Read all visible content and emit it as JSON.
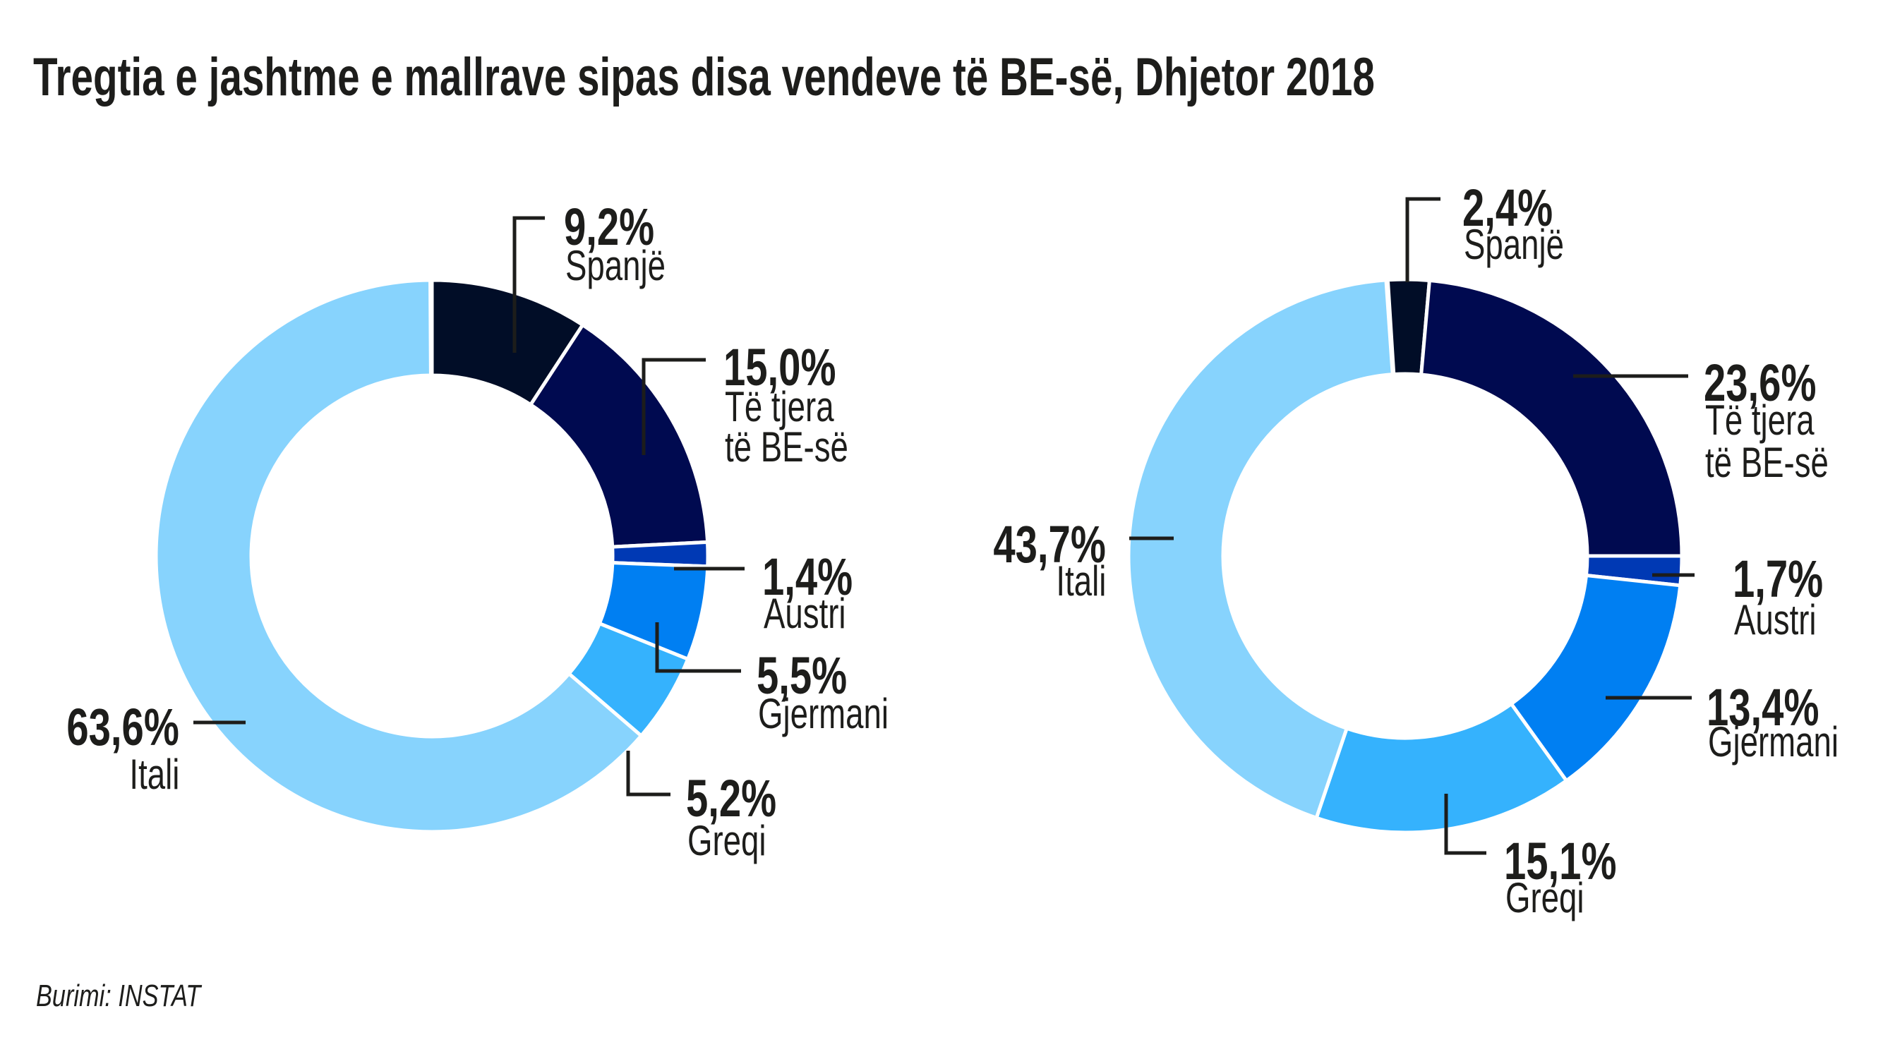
{
  "title": "Tregtia e jashtme e mallrave sipas disa vendeve të BE-së, Dhjetor 2018",
  "source": "Burimi: INSTAT",
  "colors": {
    "Spanjë": "#010d27",
    "Të tjera të BE-së": "#000a50",
    "Austri": "#0039b4",
    "Gjermani": "#007ff2",
    "Greqi": "#35b2fd",
    "Itali": "#87d3fd",
    "text": "#1d1d1b",
    "separator": "#ffffff"
  },
  "chart_data": [
    {
      "type": "pie",
      "variant": "donut",
      "title": "",
      "categories": [
        "Spanjë",
        "Të tjera të BE-së",
        "Austri",
        "Gjermani",
        "Greqi",
        "Itali"
      ],
      "values": [
        9.2,
        15.0,
        1.4,
        5.5,
        5.2,
        63.6
      ],
      "labels": [
        {
          "pct": "9,2%",
          "name": [
            "Spanjë"
          ]
        },
        {
          "pct": "15,0%",
          "name": [
            "Të tjera",
            "të BE-së"
          ]
        },
        {
          "pct": "1,4%",
          "name": [
            "Austri"
          ]
        },
        {
          "pct": "5,5%",
          "name": [
            "Gjermani"
          ]
        },
        {
          "pct": "5,2%",
          "name": [
            "Greqi"
          ]
        },
        {
          "pct": "63,6%",
          "name": [
            "Itali"
          ]
        }
      ],
      "start_offset_percent": 0,
      "direction": "clockwise",
      "legend": "none (direct labels)"
    },
    {
      "type": "pie",
      "variant": "donut",
      "title": "",
      "categories": [
        "Spanjë",
        "Të tjera të BE-së",
        "Austri",
        "Gjermani",
        "Greqi",
        "Itali"
      ],
      "values": [
        2.4,
        23.6,
        1.7,
        13.4,
        15.1,
        43.7
      ],
      "labels": [
        {
          "pct": "2,4%",
          "name": [
            "Spanjë"
          ]
        },
        {
          "pct": "23,6%",
          "name": [
            "Të tjera",
            "të BE-së"
          ]
        },
        {
          "pct": "1,7%",
          "name": [
            "Austri"
          ]
        },
        {
          "pct": "13,4%",
          "name": [
            "Gjermani"
          ]
        },
        {
          "pct": "15,1%",
          "name": [
            "Greqi"
          ]
        },
        {
          "pct": "43,7%",
          "name": [
            "Itali"
          ]
        }
      ],
      "start_offset_percent": -1.0,
      "direction": "clockwise",
      "legend": "none (direct labels)"
    }
  ]
}
